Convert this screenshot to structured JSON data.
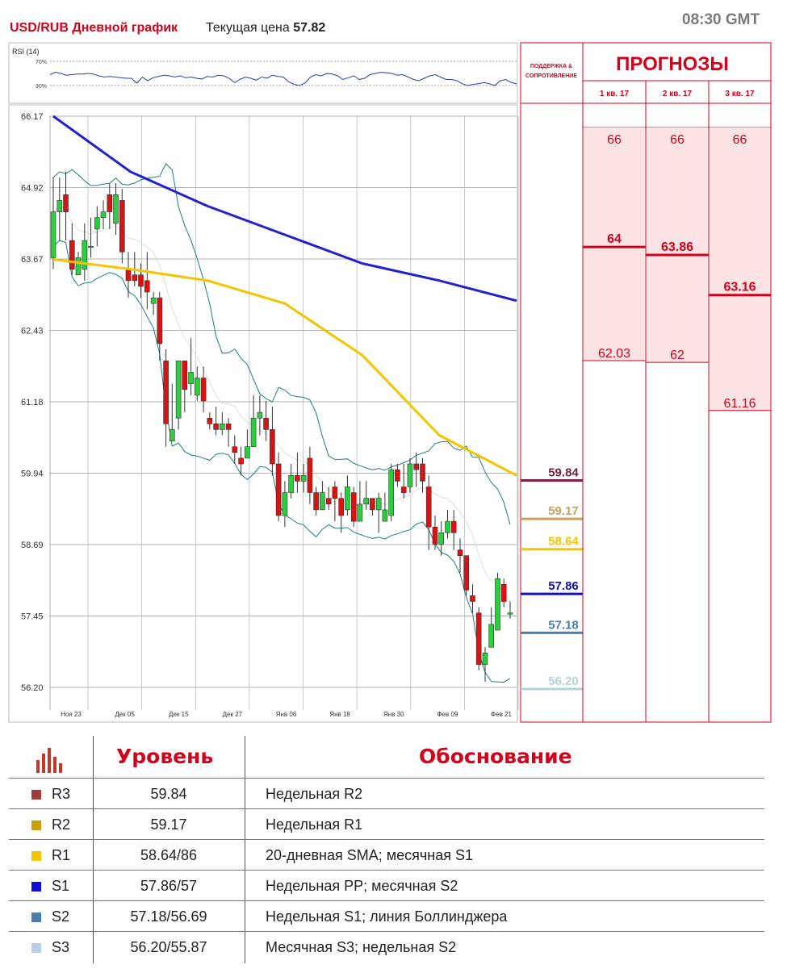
{
  "header": {
    "title": "USD/RUB Дневной график",
    "price_label": "Текущая цена",
    "price_value": "57.82",
    "time": "08:30 GMT"
  },
  "rsi": {
    "label": "RSI (14)",
    "levels": [
      "70%",
      "30%"
    ],
    "values": [
      48,
      52,
      50,
      47,
      48,
      49,
      49,
      50,
      49,
      46,
      44,
      45,
      44,
      43,
      42,
      42,
      34,
      44,
      38,
      43,
      45,
      47,
      46,
      44,
      46,
      43,
      44,
      42,
      41,
      45,
      44,
      47,
      46,
      42,
      35,
      40,
      44,
      42,
      39,
      44,
      42,
      47,
      45,
      44,
      36,
      32,
      30,
      34,
      44,
      48,
      46,
      50,
      49,
      46,
      40,
      43,
      46,
      40,
      42,
      48,
      50,
      52,
      51,
      50,
      47,
      48,
      44,
      40,
      38,
      42,
      46,
      48,
      44,
      40,
      40,
      38,
      33,
      30,
      32,
      33,
      35,
      33,
      30,
      38,
      40,
      35,
      33
    ]
  },
  "chart_data": {
    "type": "candlestick",
    "ylim": [
      56.2,
      66.17
    ],
    "y_ticks": [
      "66.17",
      "64.92",
      "63.67",
      "62.43",
      "61.18",
      "59.94",
      "58.69",
      "57.45",
      "56.20"
    ],
    "x_ticks": [
      "Ноя 23",
      "Дек 05",
      "Дек 15",
      "Дек 27",
      "Янв 06",
      "Янв 18",
      "Янв 30",
      "Фев 09",
      "Фев 21"
    ],
    "candles": [
      [
        63.7,
        64.5,
        65.1,
        63.5
      ],
      [
        64.5,
        64.7,
        65.1,
        64.0
      ],
      [
        64.8,
        64.5,
        65.2,
        64.0
      ],
      [
        64.0,
        63.5,
        64.3,
        63.4
      ],
      [
        63.4,
        63.7,
        63.8,
        63.4
      ],
      [
        63.5,
        64.0,
        64.3,
        63.3
      ],
      [
        63.9,
        63.9,
        64.4,
        63.7
      ],
      [
        64.2,
        64.4,
        64.6,
        63.9
      ],
      [
        64.4,
        64.5,
        64.7,
        64.2
      ],
      [
        64.8,
        64.5,
        65.0,
        64.2
      ],
      [
        64.3,
        64.8,
        65.0,
        64.1
      ],
      [
        64.7,
        63.8,
        64.9,
        63.6
      ],
      [
        63.5,
        63.3,
        63.8,
        63.0
      ],
      [
        63.4,
        63.3,
        63.8,
        63.2
      ],
      [
        63.4,
        63.2,
        63.6,
        63.0
      ],
      [
        63.3,
        63.1,
        63.8,
        62.8
      ],
      [
        62.9,
        63.0,
        63.1,
        62.7
      ],
      [
        63.0,
        62.2,
        63.1,
        61.9
      ],
      [
        61.9,
        60.8,
        62.1,
        60.4
      ],
      [
        60.5,
        60.7,
        61.5,
        60.5
      ],
      [
        60.9,
        61.9,
        61.9,
        60.7
      ],
      [
        61.9,
        61.4,
        61.9,
        61.0
      ],
      [
        61.5,
        61.7,
        62.3,
        61.3
      ],
      [
        61.3,
        61.6,
        61.8,
        61.2
      ],
      [
        61.6,
        61.2,
        61.8,
        61.0
      ],
      [
        60.9,
        60.8,
        61.0,
        60.7
      ],
      [
        60.8,
        60.7,
        61.1,
        60.6
      ],
      [
        60.7,
        60.8,
        61.0,
        60.6
      ],
      [
        60.8,
        60.7,
        60.9,
        60.4
      ],
      [
        60.4,
        60.3,
        60.6,
        60.1
      ],
      [
        60.2,
        60.1,
        60.4,
        59.9
      ],
      [
        60.2,
        60.4,
        60.7,
        60.2
      ],
      [
        60.4,
        60.9,
        61.3,
        60.4
      ],
      [
        60.9,
        61.0,
        61.3,
        60.6
      ],
      [
        60.9,
        60.7,
        61.2,
        60.5
      ],
      [
        60.7,
        60.1,
        61.1,
        59.9
      ],
      [
        60.1,
        59.2,
        60.3,
        59.1
      ],
      [
        59.2,
        59.6,
        59.8,
        59.0
      ],
      [
        59.6,
        59.9,
        60.1,
        59.5
      ],
      [
        59.9,
        59.8,
        60.3,
        59.6
      ],
      [
        59.8,
        59.9,
        60.1,
        59.6
      ],
      [
        60.2,
        59.6,
        60.4,
        59.4
      ],
      [
        59.6,
        59.3,
        59.7,
        59.2
      ],
      [
        59.3,
        59.6,
        59.8,
        59.3
      ],
      [
        59.5,
        59.4,
        59.7,
        59.3
      ],
      [
        59.7,
        59.5,
        59.8,
        59.1
      ],
      [
        59.5,
        59.2,
        59.6,
        58.9
      ],
      [
        59.3,
        59.7,
        59.9,
        59.2
      ],
      [
        59.6,
        59.1,
        59.7,
        59.0
      ],
      [
        59.1,
        59.4,
        59.8,
        59.1
      ],
      [
        59.4,
        59.5,
        59.8,
        59.3
      ],
      [
        59.5,
        59.3,
        59.5,
        59.2
      ],
      [
        59.3,
        59.5,
        59.6,
        58.9
      ],
      [
        59.1,
        59.3,
        59.6,
        59.1
      ],
      [
        59.2,
        60.0,
        60.1,
        59.1
      ],
      [
        60.0,
        59.8,
        60.1,
        59.7
      ],
      [
        59.7,
        59.6,
        60.1,
        59.5
      ],
      [
        59.7,
        60.1,
        60.2,
        59.6
      ],
      [
        60.1,
        60.0,
        60.3,
        59.7
      ],
      [
        60.1,
        59.8,
        60.2,
        59.6
      ],
      [
        59.7,
        59.0,
        59.9,
        58.6
      ],
      [
        59.0,
        58.7,
        59.2,
        58.6
      ],
      [
        58.7,
        58.9,
        59.1,
        58.5
      ],
      [
        58.9,
        59.1,
        59.3,
        58.8
      ],
      [
        59.1,
        58.9,
        59.3,
        58.6
      ],
      [
        58.6,
        58.5,
        58.8,
        58.2
      ],
      [
        58.5,
        57.9,
        58.5,
        57.8
      ],
      [
        57.8,
        57.7,
        58.0,
        57.5
      ],
      [
        57.5,
        56.6,
        57.6,
        56.5
      ],
      [
        56.6,
        56.8,
        56.9,
        56.3
      ],
      [
        56.9,
        57.3,
        57.6,
        56.9
      ],
      [
        57.2,
        58.1,
        58.2,
        57.2
      ],
      [
        58.0,
        57.7,
        58.1,
        57.6
      ],
      [
        57.5,
        57.5,
        57.7,
        57.4
      ]
    ],
    "sma_blue_points": [
      66.17,
      65.2,
      64.6,
      64.1,
      63.6,
      63.3,
      62.95
    ],
    "sma_yellow_points": [
      63.67,
      63.5,
      63.3,
      62.9,
      62.0,
      60.6,
      59.9
    ],
    "levels": [
      {
        "value": "59.84",
        "label": "59.84",
        "color": "#7a1f3a"
      },
      {
        "value": "59.17",
        "label": "59.17",
        "color": "#c9a05a"
      },
      {
        "value": "58.64",
        "label": "58.64",
        "color": "#f5c400"
      },
      {
        "value": "57.86",
        "label": "57.86",
        "color": "#1010c0"
      },
      {
        "value": "57.18",
        "label": "57.18",
        "color": "#4a7db0"
      },
      {
        "value": "56.20",
        "label": "56.20",
        "color": "#b0d4dc"
      }
    ]
  },
  "support_header": "ПОДДЕРЖКА & СОПРОТИВЛЕНИЕ",
  "forecast": {
    "title": "ПРОГНОЗЫ",
    "quarters": [
      "1 кв. 17",
      "2 кв. 17",
      "3 кв. 17"
    ],
    "top": [
      "66",
      "66",
      "66"
    ],
    "mid": [
      "64",
      "63.86",
      "63.16"
    ],
    "low": [
      "62.03",
      "62",
      "61.16"
    ]
  },
  "levels_table": {
    "col_level": "Уровень",
    "col_reason": "Обоснование",
    "rows": [
      {
        "name": "R3",
        "value": "59.84",
        "reason": "Недельная R2",
        "color": "#a03c3c"
      },
      {
        "name": "R2",
        "value": "59.17",
        "reason": "Недельная R1",
        "color": "#c9a000"
      },
      {
        "name": "R1",
        "value": "58.64/86",
        "reason": "20-дневная SMA; месячная  S1",
        "color": "#f5c400"
      },
      {
        "name": "S1",
        "value": "57.86/57",
        "reason": "Недельная PP; месячная  S2",
        "color": "#0d0dd8"
      },
      {
        "name": "S2",
        "value": "57.18/56.69",
        "reason": "Недельная S1; линия Боллинджера",
        "color": "#4a7db0"
      },
      {
        "name": "S3",
        "value": "56.20/55.87",
        "reason": "Месячная  S3; недельная S2",
        "color": "#b8cfe8"
      }
    ]
  }
}
